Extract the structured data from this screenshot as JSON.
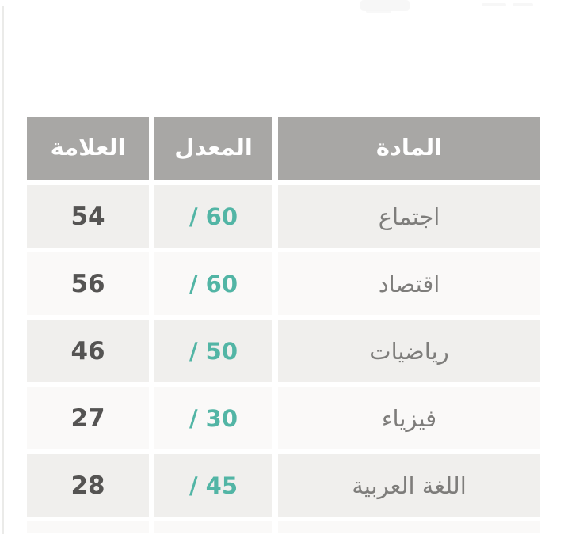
{
  "theme": {
    "page_bg": "#ffffff",
    "header_bg": "#a8a7a5",
    "header_text": "#ffffff",
    "row_odd_bg": "#f0efed",
    "row_even_bg": "#faf9f8",
    "mark_color": "#555453",
    "subject_color": "#7e7d7b",
    "ratio_color": "#52b5a5",
    "edge_line": "#ebebe9"
  },
  "table": {
    "columns": [
      {
        "key": "subject",
        "label": "المادة"
      },
      {
        "key": "average",
        "label": "المعدل"
      },
      {
        "key": "mark",
        "label": "العلامة"
      }
    ],
    "rows": [
      {
        "subject": "اجتماع",
        "average": "/ 60",
        "mark": "54"
      },
      {
        "subject": "اقتصاد",
        "average": "/ 60",
        "mark": "56"
      },
      {
        "subject": "رياضيات",
        "average": "/ 50",
        "mark": "46"
      },
      {
        "subject": "فيزياء",
        "average": "/ 30",
        "mark": "27"
      },
      {
        "subject": "اللغة العربية",
        "average": "/ 45",
        "mark": "28"
      }
    ]
  },
  "chart_data": {
    "type": "table",
    "title": "",
    "categories": [
      "اجتماع",
      "اقتصاد",
      "رياضيات",
      "فيزياء",
      "اللغة العربية"
    ],
    "series": [
      {
        "name": "العلامة",
        "values": [
          54,
          56,
          46,
          27,
          28
        ]
      },
      {
        "name": "المعدل",
        "values": [
          60,
          60,
          50,
          30,
          45
        ]
      }
    ]
  }
}
